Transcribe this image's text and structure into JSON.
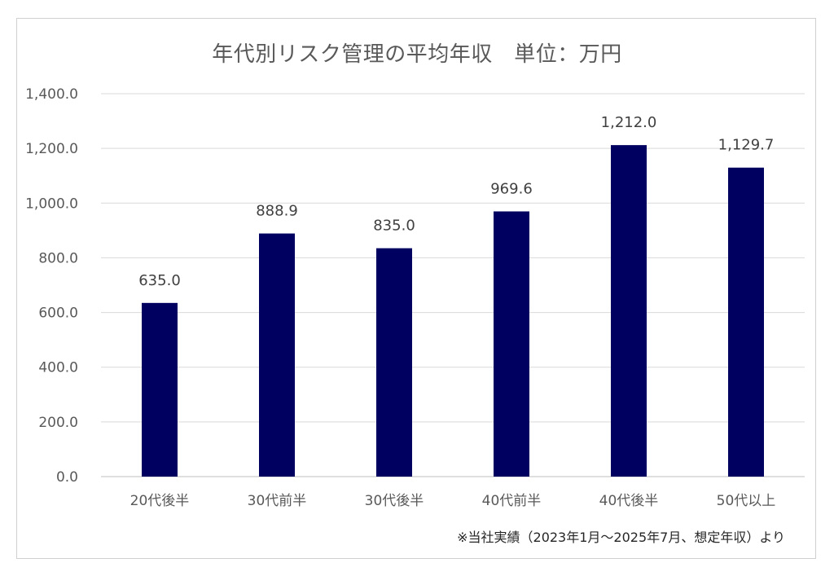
{
  "chart_data": {
    "type": "bar",
    "title": "年代別リスク管理の平均年収　単位：万円",
    "categories": [
      "20代後半",
      "30代前半",
      "30代後半",
      "40代前半",
      "40代後半",
      "50代以上"
    ],
    "values": [
      635.0,
      888.9,
      835.0,
      969.6,
      1212.0,
      1129.7
    ],
    "data_labels": [
      "635.0",
      "888.9",
      "835.0",
      "969.6",
      "1,212.0",
      "1,129.7"
    ],
    "ylim": [
      0,
      1400
    ],
    "yticks": [
      0,
      200,
      400,
      600,
      800,
      1000,
      1200,
      1400
    ],
    "ytick_labels": [
      "0.0",
      "200.0",
      "400.0",
      "600.0",
      "800.0",
      "1,000.0",
      "1,200.0",
      "1,400.0"
    ],
    "grid": true,
    "bar_color": "#000060",
    "note": "※当社実績（2023年1月～2025年7月、想定年収）より"
  }
}
